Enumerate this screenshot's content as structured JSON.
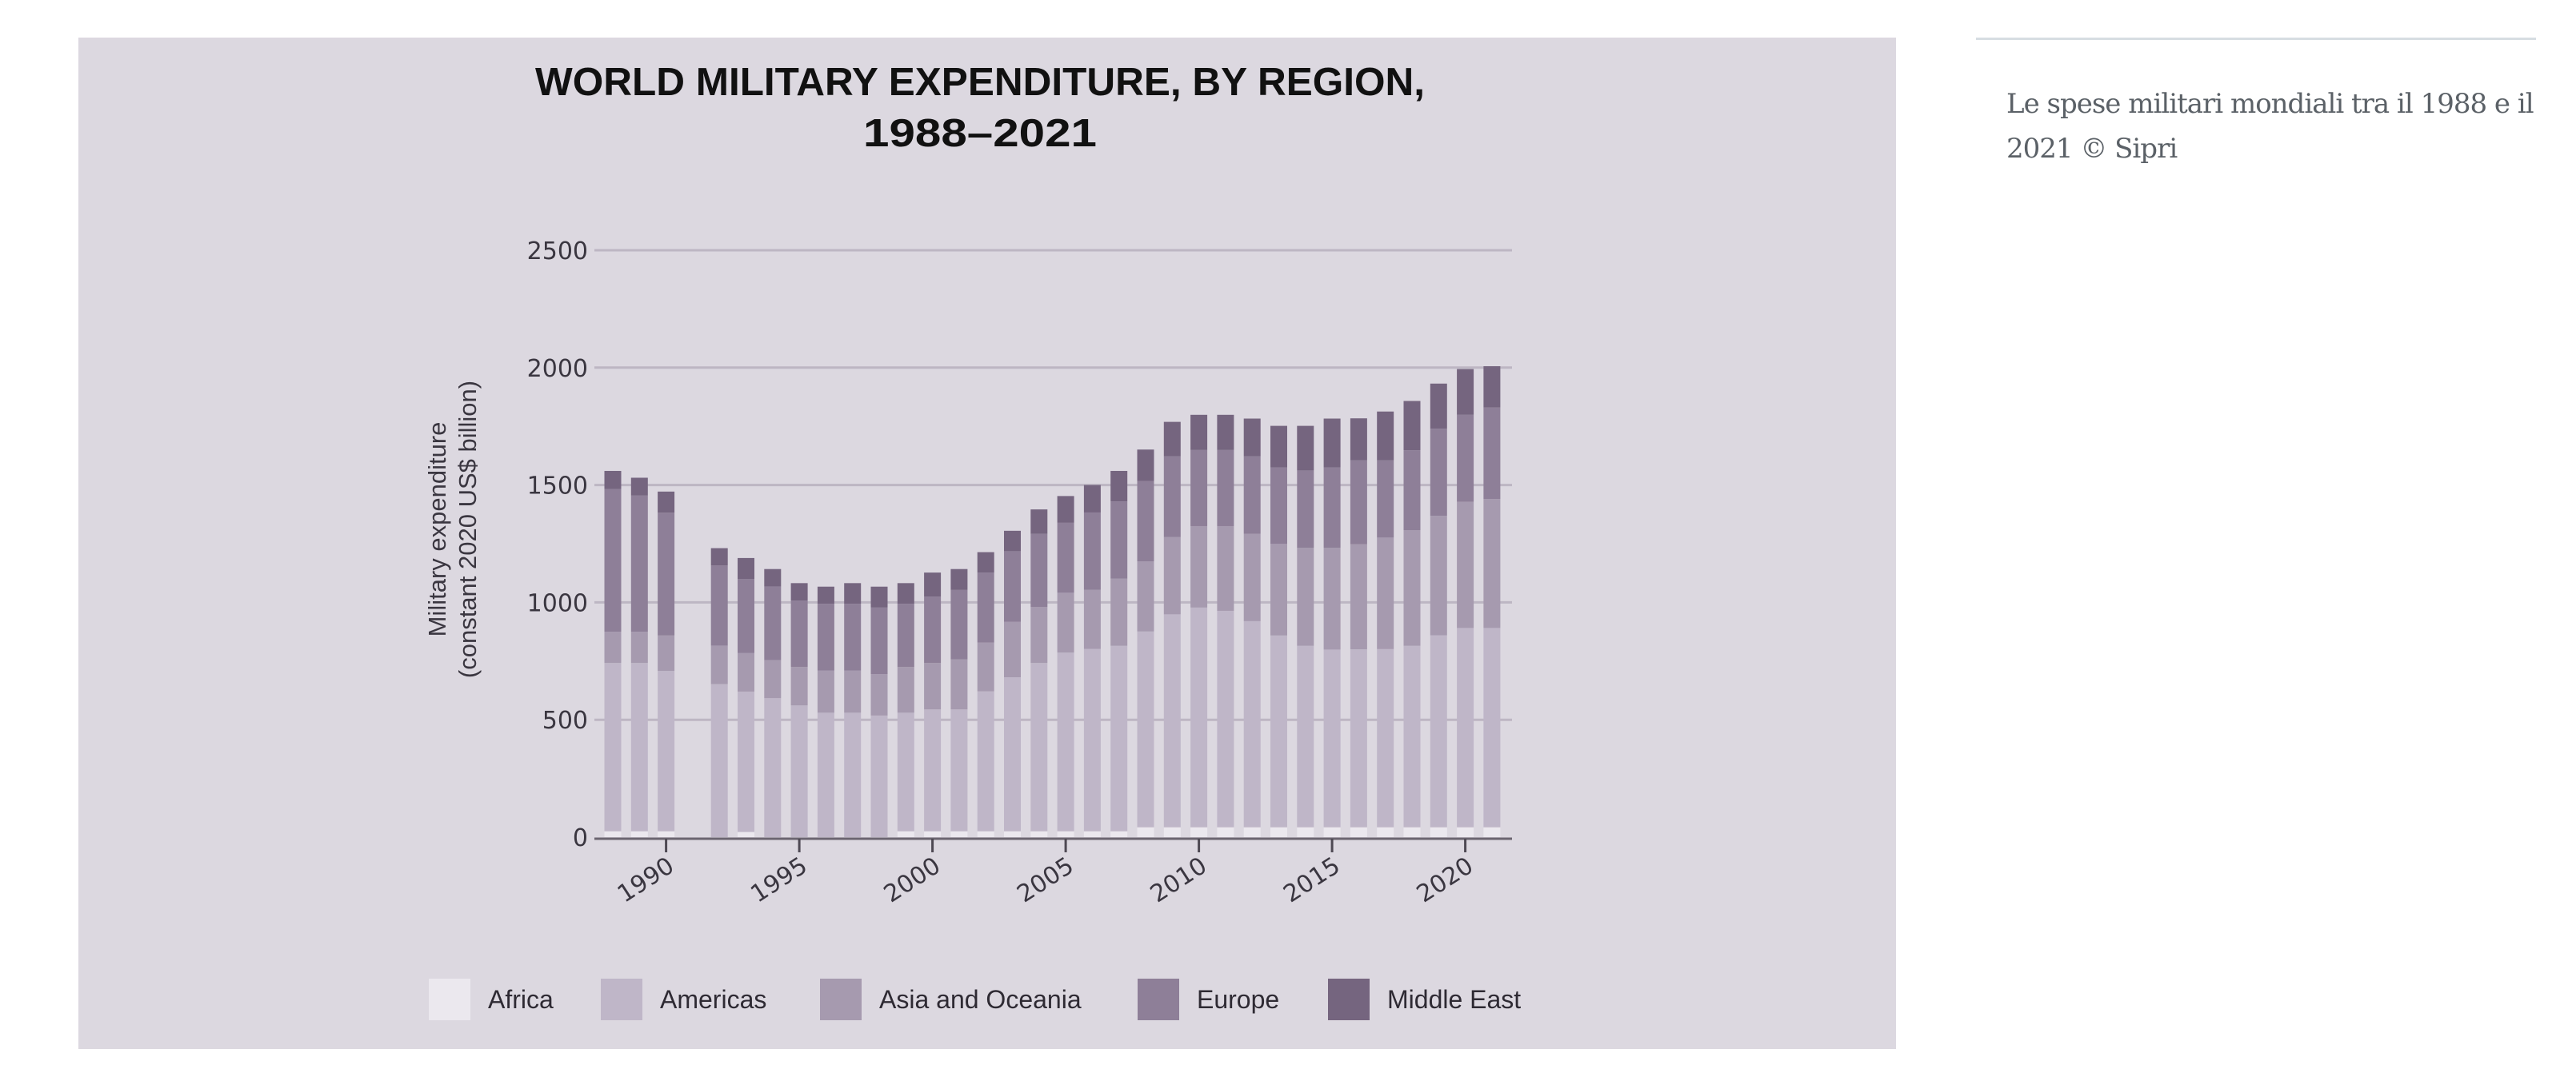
{
  "caption": {
    "text": "Le spese militari mondiali tra il 1988 e il 2021 © Sipri"
  },
  "colors": {
    "panel_background": "#dcd8e0",
    "Africa": "#ebe8ee",
    "Americas": "#bfb6c8",
    "Asia and Oceania": "#a69aaf",
    "Europe": "#8e7f98",
    "Middle East": "#75657f"
  },
  "chart_data": {
    "type": "bar",
    "stacked": true,
    "title": "WORLD MILITARY EXPENDITURE, BY REGION,",
    "title_line2": "1988–2021",
    "xlabel": "",
    "ylabel": "Military expenditure",
    "ylabel_line2": "(constant 2020 US$ billion)",
    "ylim": [
      0,
      2500
    ],
    "yticks": [
      0,
      500,
      1000,
      1500,
      2000,
      2500
    ],
    "xlim": [
      1988,
      2021
    ],
    "xticks": [
      1990,
      1995,
      2000,
      2005,
      2010,
      2015,
      2020
    ],
    "grid": true,
    "legend_position": "bottom",
    "categories": [
      1988,
      1989,
      1990,
      1992,
      1993,
      1994,
      1995,
      1996,
      1997,
      1998,
      1999,
      2000,
      2001,
      2002,
      2003,
      2004,
      2005,
      2006,
      2007,
      2008,
      2009,
      2010,
      2011,
      2012,
      2013,
      2014,
      2015,
      2016,
      2017,
      2018,
      2019,
      2020,
      2021
    ],
    "series": [
      {
        "name": "Africa",
        "values": [
          25,
          25,
          25,
          0,
          22,
          0,
          0,
          0,
          0,
          0,
          25,
          25,
          25,
          25,
          25,
          25,
          25,
          25,
          25,
          42,
          42,
          42,
          42,
          42,
          42,
          42,
          42,
          42,
          42,
          42,
          42,
          42,
          42
        ]
      },
      {
        "name": "Americas",
        "values": [
          717,
          717,
          683,
          652,
          598,
          592,
          561,
          530,
          530,
          518,
          505,
          519,
          519,
          596,
          656,
          717,
          761,
          777,
          790,
          834,
          907,
          936,
          922,
          878,
          817,
          773,
          757,
          758,
          759,
          773,
          818,
          849,
          849
        ]
      },
      {
        "name": "Asia and Oceania",
        "values": [
          133,
          133,
          151,
          164,
          164,
          162,
          164,
          180,
          180,
          176,
          195,
          198,
          213,
          208,
          236,
          238,
          255,
          252,
          286,
          299,
          329,
          347,
          361,
          372,
          390,
          418,
          434,
          448,
          475,
          492,
          509,
          538,
          549
        ]
      },
      {
        "name": "Europe",
        "values": [
          608,
          580,
          523,
          341,
          315,
          314,
          283,
          284,
          284,
          284,
          269,
          283,
          296,
          298,
          301,
          312,
          298,
          329,
          329,
          342,
          344,
          324,
          324,
          330,
          326,
          329,
          342,
          357,
          329,
          341,
          371,
          370,
          390
        ]
      },
      {
        "name": "Middle East",
        "values": [
          77,
          76,
          90,
          74,
          90,
          74,
          74,
          73,
          88,
          89,
          88,
          102,
          89,
          87,
          87,
          104,
          114,
          117,
          130,
          134,
          147,
          150,
          150,
          161,
          177,
          190,
          208,
          179,
          208,
          210,
          192,
          195,
          176
        ]
      }
    ],
    "legend": [
      "Africa",
      "Americas",
      "Asia and Oceania",
      "Europe",
      "Middle East"
    ]
  }
}
